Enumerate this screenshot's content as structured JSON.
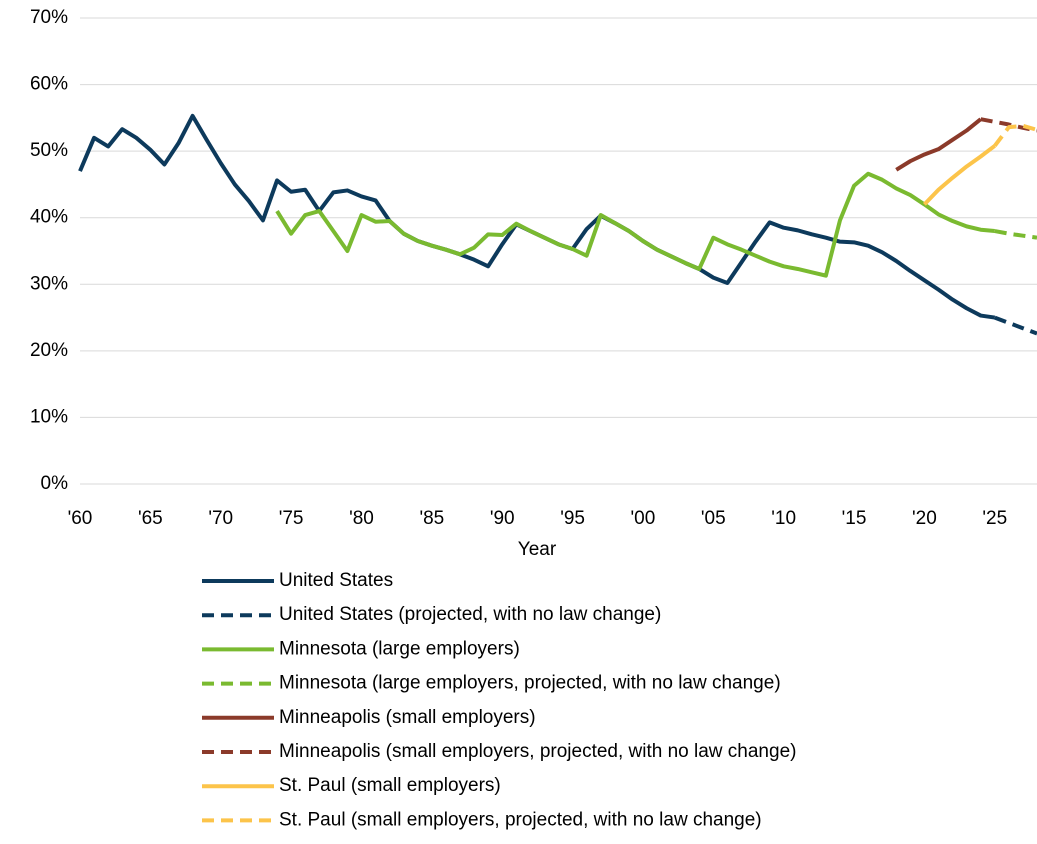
{
  "chart_data": {
    "type": "line",
    "x_label": "Year",
    "xlim": [
      1960,
      2028
    ],
    "xticks": [
      {
        "value": 1960,
        "label": "'60"
      },
      {
        "value": 1965,
        "label": "'65"
      },
      {
        "value": 1970,
        "label": "'70"
      },
      {
        "value": 1975,
        "label": "'75"
      },
      {
        "value": 1980,
        "label": "'80"
      },
      {
        "value": 1985,
        "label": "'85"
      },
      {
        "value": 1990,
        "label": "'90"
      },
      {
        "value": 1995,
        "label": "'95"
      },
      {
        "value": 2000,
        "label": "'00"
      },
      {
        "value": 2005,
        "label": "'05"
      },
      {
        "value": 2010,
        "label": "'10"
      },
      {
        "value": 2015,
        "label": "'15"
      },
      {
        "value": 2020,
        "label": "'20"
      },
      {
        "value": 2025,
        "label": "'25"
      }
    ],
    "ylim": [
      0,
      70
    ],
    "yticks": [
      {
        "value": 0,
        "label": "0%"
      },
      {
        "value": 10,
        "label": "10%"
      },
      {
        "value": 20,
        "label": "20%"
      },
      {
        "value": 30,
        "label": "30%"
      },
      {
        "value": 40,
        "label": "40%"
      },
      {
        "value": 50,
        "label": "50%"
      },
      {
        "value": 60,
        "label": "60%"
      },
      {
        "value": 70,
        "label": "70%"
      }
    ],
    "grid": true,
    "legend": "bottom",
    "series": [
      {
        "name": "United States",
        "color": "#0d3a5c",
        "dashed": false,
        "x": [
          1960,
          1961,
          1962,
          1963,
          1964,
          1965,
          1966,
          1967,
          1968,
          1969,
          1970,
          1971,
          1972,
          1973,
          1974,
          1975,
          1976,
          1977,
          1978,
          1979,
          1980,
          1981,
          1982,
          1983,
          1984,
          1985,
          1986,
          1987,
          1988,
          1989,
          1990,
          1991,
          1992,
          1993,
          1994,
          1995,
          1996,
          1997,
          1998,
          1999,
          2000,
          2001,
          2002,
          2003,
          2004,
          2005,
          2006,
          2007,
          2008,
          2009,
          2010,
          2011,
          2012,
          2013,
          2014,
          2015,
          2016,
          2017,
          2018,
          2019,
          2020,
          2021,
          2022,
          2023,
          2024,
          2025
        ],
        "values": [
          47,
          52,
          50.7,
          53.3,
          52,
          50.2,
          48,
          51.2,
          55.3,
          51.7,
          48.2,
          45,
          42.5,
          39.6,
          45.6,
          43.9,
          44.2,
          41,
          43.8,
          44.1,
          43.2,
          42.6,
          39.5,
          37.6,
          36.5,
          35.8,
          35.2,
          34.5,
          33.7,
          32.7,
          36,
          39,
          38,
          37,
          36,
          35.3,
          38.3,
          40.3,
          39.2,
          38,
          36.5,
          35.2,
          34.2,
          33.2,
          32.3,
          31,
          30.2,
          33.3,
          36.4,
          39.3,
          38.5,
          38.1,
          37.5,
          37,
          36.4,
          36.3,
          35.8,
          34.8,
          33.5,
          32,
          30.6,
          29.2,
          27.7,
          26.4,
          25.3,
          25
        ]
      },
      {
        "name": "United States (projected, with no law change)",
        "color": "#0d3a5c",
        "dashed": true,
        "x": [
          2025,
          2026,
          2027,
          2028
        ],
        "values": [
          25,
          24.2,
          23.4,
          22.6
        ]
      },
      {
        "name": "Minnesota (large employers)",
        "color": "#7aba30",
        "dashed": false,
        "x": [
          1974,
          1975,
          1976,
          1977,
          1978,
          1979,
          1980,
          1981,
          1982,
          1983,
          1984,
          1985,
          1986,
          1987,
          1988,
          1989,
          1990,
          1991,
          1992,
          1993,
          1994,
          1995,
          1996,
          1997,
          1998,
          1999,
          2000,
          2001,
          2002,
          2003,
          2004,
          2005,
          2006,
          2007,
          2008,
          2009,
          2010,
          2011,
          2012,
          2013,
          2014,
          2015,
          2016,
          2017,
          2018,
          2019,
          2020,
          2021,
          2022,
          2023,
          2024,
          2025
        ],
        "values": [
          41,
          37.6,
          40.4,
          41,
          38,
          35,
          40.4,
          39.4,
          39.5,
          37.6,
          36.5,
          35.8,
          35.2,
          34.5,
          35.5,
          37.5,
          37.4,
          39.1,
          38,
          37,
          36,
          35.3,
          34.3,
          40.4,
          39.2,
          38,
          36.5,
          35.2,
          34.2,
          33.2,
          32.3,
          37,
          36,
          35.2,
          34.3,
          33.4,
          32.7,
          32.3,
          31.8,
          31.3,
          39.6,
          44.8,
          46.6,
          45.7,
          44.4,
          43.4,
          42,
          40.5,
          39.5,
          38.7,
          38.2,
          38
        ]
      },
      {
        "name": "Minnesota (large employers, projected, with no law change)",
        "color": "#7aba30",
        "dashed": true,
        "x": [
          2025,
          2026,
          2027,
          2028
        ],
        "values": [
          38,
          37.6,
          37.3,
          37
        ]
      },
      {
        "name": "Minneapolis (small employers)",
        "color": "#8b3a2a",
        "dashed": false,
        "x": [
          2018,
          2019,
          2020,
          2021,
          2022,
          2023,
          2024
        ],
        "values": [
          47.2,
          48.5,
          49.5,
          50.3,
          51.7,
          53.1,
          54.8
        ]
      },
      {
        "name": "Minneapolis (small employers, projected, with no law change)",
        "color": "#8b3a2a",
        "dashed": true,
        "x": [
          2024,
          2025,
          2026,
          2027,
          2028
        ],
        "values": [
          54.8,
          54.4,
          54,
          53.5,
          53.1
        ]
      },
      {
        "name": "St. Paul (small employers)",
        "color": "#fcc44a",
        "dashed": false,
        "x": [
          2020,
          2021,
          2022,
          2023,
          2024,
          2025
        ],
        "values": [
          42,
          44.2,
          46,
          47.7,
          49.2,
          50.8
        ]
      },
      {
        "name": "St. Paul (small employers, projected, with no law change)",
        "color": "#fcc44a",
        "dashed": true,
        "x": [
          2025,
          2026,
          2027,
          2028
        ],
        "values": [
          50.8,
          53.6,
          53.8,
          53.2
        ]
      }
    ]
  }
}
